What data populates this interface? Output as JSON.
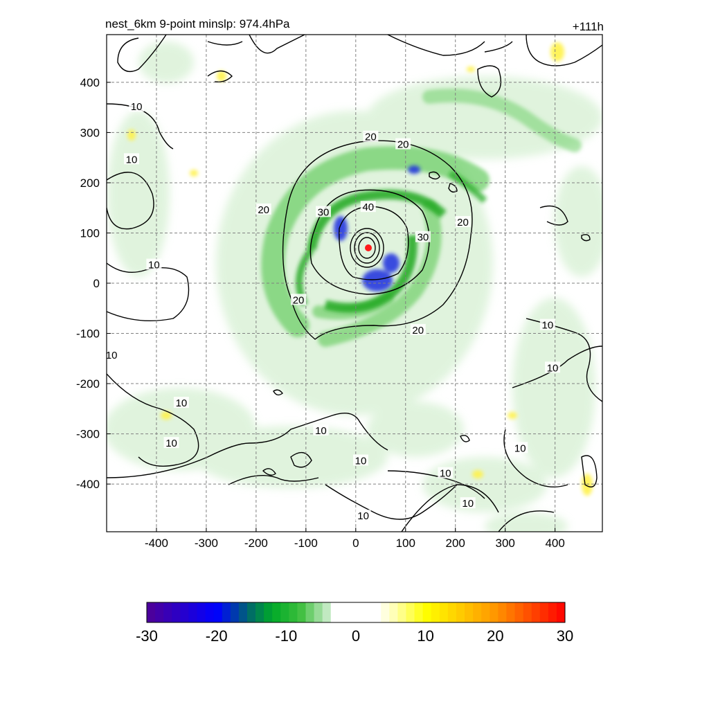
{
  "chart_data": {
    "type": "contour",
    "title": "nest_6km  9-point minslp: 974.4hPa",
    "time_label": "+111h",
    "x_ticks": [
      -400,
      -300,
      -200,
      -100,
      0,
      100,
      200,
      300,
      400
    ],
    "y_ticks": [
      400,
      300,
      200,
      100,
      0,
      -100,
      -200,
      -300,
      -400
    ],
    "xlim": [
      -500,
      495
    ],
    "ylim": [
      -495,
      495
    ],
    "grid": true,
    "center": {
      "x": 25,
      "y": 70
    },
    "colorbar": {
      "min": -30,
      "max": 30,
      "ticks": [
        -30,
        -20,
        -10,
        0,
        10,
        20,
        30
      ],
      "placement": "bottom"
    },
    "contour_labels": [
      {
        "text": "10",
        "x": -440,
        "y": 350
      },
      {
        "text": "10",
        "x": -450,
        "y": 245
      },
      {
        "text": "10",
        "x": -405,
        "y": 35
      },
      {
        "text": "10",
        "x": -490,
        "y": -145
      },
      {
        "text": "10",
        "x": -350,
        "y": -240
      },
      {
        "text": "10",
        "x": -370,
        "y": -320
      },
      {
        "text": "10",
        "x": -70,
        "y": -295
      },
      {
        "text": "10",
        "x": 10,
        "y": -355
      },
      {
        "text": "10",
        "x": 180,
        "y": -380
      },
      {
        "text": "10",
        "x": 225,
        "y": -440
      },
      {
        "text": "10",
        "x": 15,
        "y": -465
      },
      {
        "text": "10",
        "x": 330,
        "y": -330
      },
      {
        "text": "10",
        "x": 395,
        "y": -170
      },
      {
        "text": "10",
        "x": 385,
        "y": -85
      },
      {
        "text": "20",
        "x": 30,
        "y": 290
      },
      {
        "text": "20",
        "x": 95,
        "y": 275
      },
      {
        "text": "20",
        "x": -185,
        "y": 145
      },
      {
        "text": "20",
        "x": 215,
        "y": 120
      },
      {
        "text": "20",
        "x": -115,
        "y": -35
      },
      {
        "text": "20",
        "x": 125,
        "y": -95
      },
      {
        "text": "30",
        "x": -65,
        "y": 140
      },
      {
        "text": "30",
        "x": 135,
        "y": 90
      },
      {
        "text": "40",
        "x": 25,
        "y": 150
      }
    ]
  }
}
